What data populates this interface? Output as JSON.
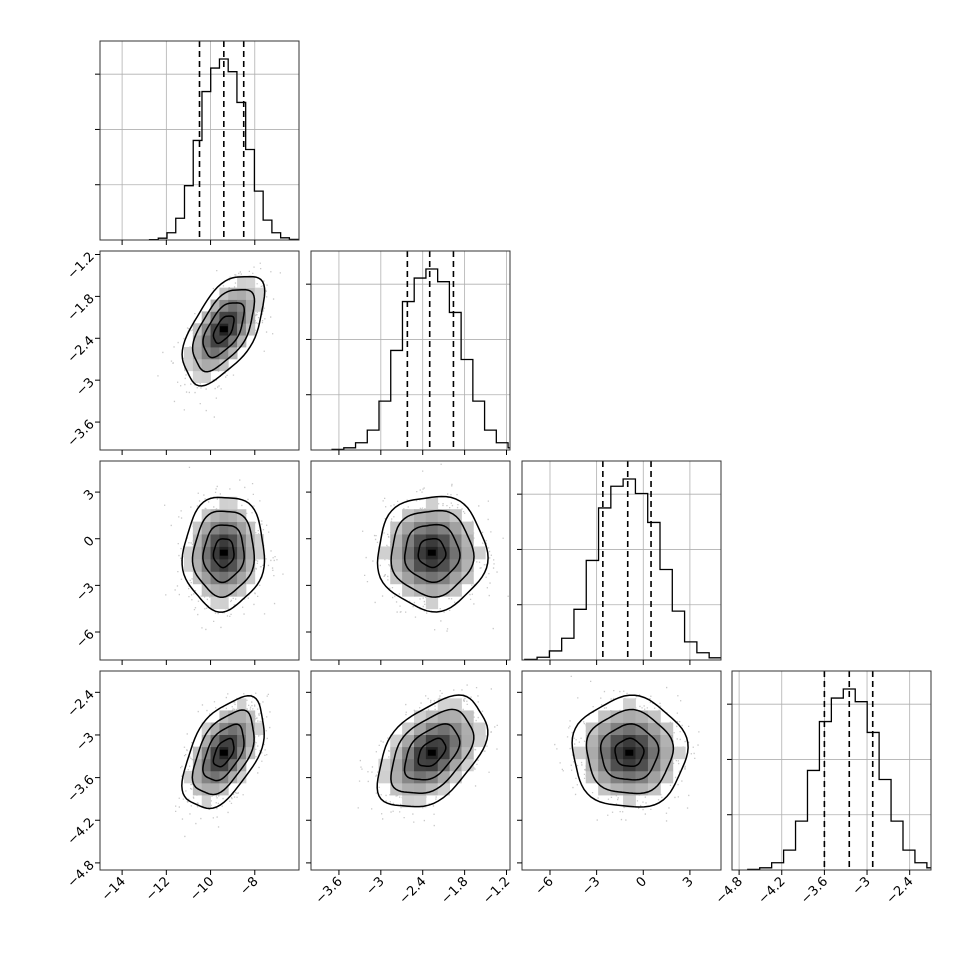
{
  "chart_data": {
    "type": "corner",
    "title": "",
    "parameters": [
      {
        "label": "",
        "range": [
          -15,
          -6
        ],
        "ticks": [
          -14,
          -12,
          -10,
          -8
        ],
        "quantiles": [
          -10.5,
          -9.4,
          -8.5
        ],
        "center": -9.4,
        "sd": 0.8
      },
      {
        "label": "",
        "range": [
          -4.0,
          -1.15
        ],
        "ticks": [
          -3.6,
          -3.0,
          -2.4,
          -1.8,
          -1.2
        ],
        "quantiles": [
          -2.62,
          -2.3,
          -1.96
        ],
        "center": -2.27,
        "sd": 0.34
      },
      {
        "label": "",
        "range": [
          -7.8,
          5.0
        ],
        "ticks": [
          -6,
          -3,
          0,
          3
        ],
        "quantiles": [
          -2.6,
          -1.0,
          0.5
        ],
        "center": -0.9,
        "sd": 1.6
      },
      {
        "label": "",
        "range": [
          -4.9,
          -2.1
        ],
        "ticks": [
          -4.8,
          -4.2,
          -3.6,
          -3.0,
          -2.4
        ],
        "quantiles": [
          -3.6,
          -3.25,
          -2.92
        ],
        "center": -3.25,
        "sd": 0.34
      }
    ],
    "correlations": {
      "0-1": 0.55,
      "0-2": 0.05,
      "0-3": 0.5,
      "1-2": 0.0,
      "1-3": 0.45,
      "2-3": 0.0
    },
    "histograms": [
      [
        0.002,
        0.01,
        0.04,
        0.12,
        0.3,
        0.55,
        0.82,
        0.95,
        1.0,
        0.93,
        0.76,
        0.5,
        0.27,
        0.11,
        0.04,
        0.012,
        0.003
      ],
      [
        0.003,
        0.012,
        0.04,
        0.11,
        0.27,
        0.55,
        0.82,
        0.95,
        1.0,
        0.93,
        0.76,
        0.5,
        0.27,
        0.11,
        0.04,
        0.012,
        0.003
      ],
      [
        0.003,
        0.015,
        0.05,
        0.12,
        0.28,
        0.55,
        0.84,
        0.96,
        1.0,
        0.92,
        0.76,
        0.5,
        0.27,
        0.1,
        0.04,
        0.012,
        0.003
      ],
      [
        0.003,
        0.012,
        0.04,
        0.11,
        0.27,
        0.55,
        0.82,
        0.95,
        1.0,
        0.93,
        0.76,
        0.5,
        0.27,
        0.11,
        0.04,
        0.012,
        0.003
      ]
    ],
    "contour_levels_sigma": [
      0.5,
      1.0,
      1.5,
      2.0
    ],
    "grid": true,
    "colors": {
      "line": "#000000",
      "grid": "#b0b0b0",
      "points": "#9a9a9a"
    }
  }
}
